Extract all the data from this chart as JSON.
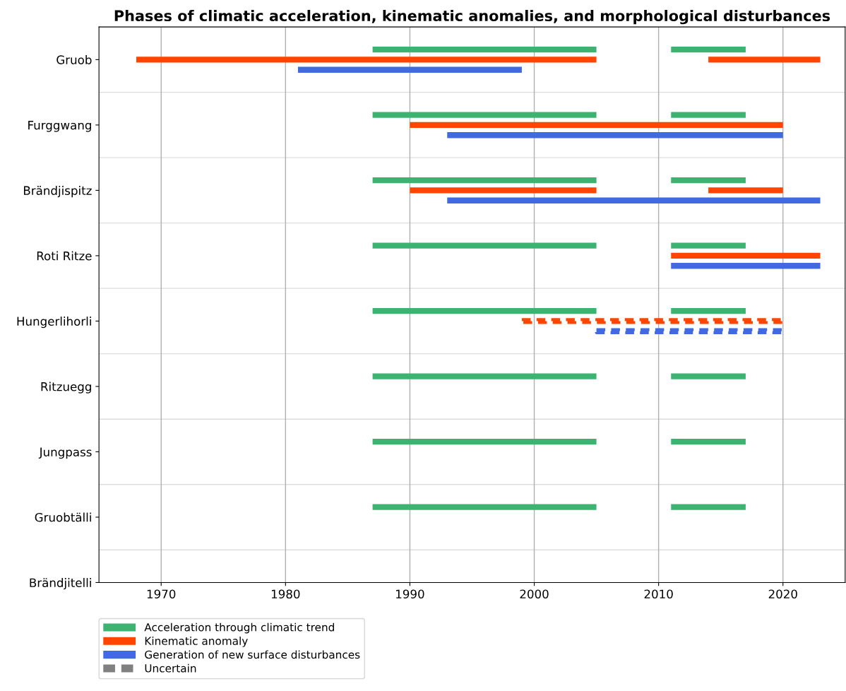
{
  "chart_data": {
    "type": "bar",
    "orientation": "horizontal",
    "title": "Phases of climatic acceleration, kinematic anomalies, and morphological disturbances",
    "categories": [
      "Gruob",
      "Furggwang",
      "Brändjispitz",
      "Roti Ritze",
      "Hungerlihorli",
      "Ritzuegg",
      "Jungpass",
      "Gruobtälli",
      "Brändjitelli"
    ],
    "xlim": [
      1965,
      2025
    ],
    "xticks": [
      1970,
      1980,
      1990,
      2000,
      2010,
      2020
    ],
    "grid": true,
    "legend": "bottom left",
    "series": [
      {
        "name": "Acceleration through climatic trend",
        "color": "#3cb371",
        "line_style": "solid",
        "base": [
          1987,
          1987,
          1987,
          1987,
          1987,
          1987,
          1987,
          1987,
          null
        ],
        "values": [
          18,
          18,
          18,
          18,
          18,
          18,
          18,
          18,
          null
        ]
      },
      {
        "color": "#3cb371",
        "line_style": "solid",
        "base": [
          2011,
          2011,
          2011,
          2011,
          2011,
          2011,
          2011,
          2011,
          null
        ],
        "values": [
          6,
          6,
          6,
          6,
          6,
          6,
          6,
          6,
          null
        ]
      },
      {
        "name": "Kinematic anomaly",
        "color": "#ff4500",
        "line_style": "solid",
        "base": [
          1968,
          1990,
          1990,
          2011,
          null,
          null,
          null,
          null,
          null
        ],
        "values": [
          37,
          30,
          15,
          12,
          null,
          null,
          null,
          null,
          null
        ]
      },
      {
        "color": "#ff4500",
        "line_style": "solid",
        "base": [
          2014,
          null,
          2014,
          null,
          null,
          null,
          null,
          null,
          null
        ],
        "values": [
          9,
          null,
          6,
          null,
          null,
          null,
          null,
          null,
          null
        ]
      },
      {
        "name": "Generation of new surface disturbances",
        "color": "#4169e1",
        "line_style": "solid",
        "base": [
          1981,
          1993,
          1993,
          2011,
          null,
          null,
          null,
          null,
          null
        ],
        "values": [
          18,
          27,
          30,
          12,
          null,
          null,
          null,
          null,
          null
        ]
      },
      {
        "color": "#ff4500",
        "line_style": "dashed",
        "base": [
          null,
          null,
          null,
          null,
          1999,
          null,
          null,
          null,
          null
        ],
        "values": [
          null,
          null,
          null,
          null,
          21,
          null,
          null,
          null,
          null
        ]
      },
      {
        "color": "#4169e1",
        "line_style": "dashed",
        "base": [
          null,
          null,
          null,
          null,
          2005,
          null,
          null,
          null,
          null
        ],
        "values": [
          null,
          null,
          null,
          null,
          15,
          null,
          null,
          null,
          null
        ]
      },
      {
        "name": "Uncertain",
        "color": "#808080",
        "line_style": "dashed",
        "base": [
          null,
          null,
          null,
          null,
          null,
          null,
          null,
          null,
          null
        ],
        "values": [
          null,
          null,
          null,
          null,
          null,
          null,
          null,
          null,
          null
        ]
      }
    ]
  }
}
